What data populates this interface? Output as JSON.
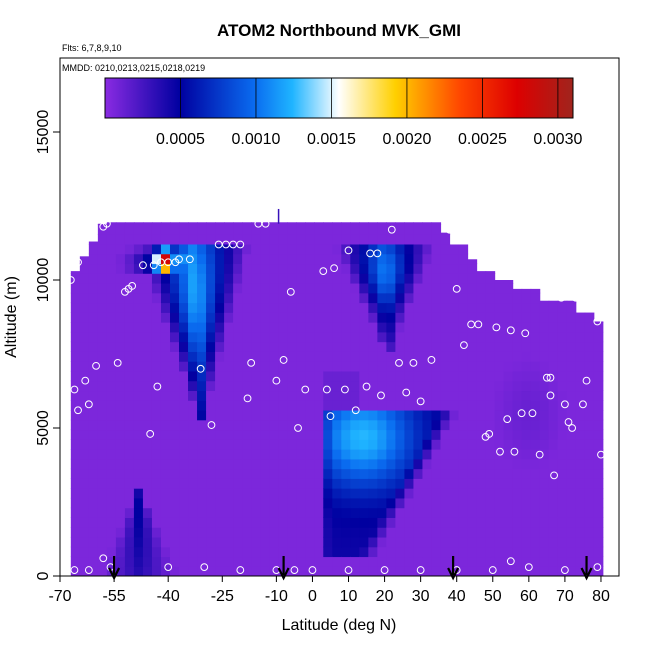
{
  "chart_data": {
    "type": "heatmap",
    "title": "ATOM2 Northbound MVK_GMI",
    "flights_note": "Flts: 6,7,8,9,10",
    "dates_note": "MMDD: 0210,0213,0215,0218,0219",
    "xlabel": "Latitude (deg N)",
    "ylabel": "Altitude (m)",
    "xlim": [
      -70,
      85
    ],
    "ylim": [
      0,
      17500
    ],
    "x_ticks": [
      -70,
      -55,
      -40,
      -25,
      -10,
      0,
      10,
      20,
      30,
      40,
      50,
      60,
      70,
      80
    ],
    "x_tick_labels": [
      "-70",
      "-55",
      "-40",
      "-25",
      "-10",
      "0",
      "10",
      "20",
      "30",
      "40",
      "50",
      "60",
      "70",
      "80"
    ],
    "y_ticks": [
      0,
      5000,
      10000,
      15000
    ],
    "y_tick_labels": [
      "0",
      "5000",
      "10000",
      "15000"
    ],
    "colorbar": {
      "range": [
        0,
        0.0031
      ],
      "ticks": [
        0.0005,
        0.001,
        0.0015,
        0.002,
        0.0025,
        0.003
      ],
      "tick_labels": [
        "0.0005",
        "0.0010",
        "0.0015",
        "0.0020",
        "0.0025",
        "0.0030"
      ],
      "colors": [
        "#8a2be2",
        "#0000a0",
        "#1e90ff",
        "#ffffff",
        "#ffd700",
        "#ff4500",
        "#cc0000",
        "#a52a2a"
      ]
    },
    "background_value": 5e-05,
    "regions": [
      {
        "name": "southern upper plume",
        "lat_range": [
          -50,
          -20
        ],
        "alt_top": 11200,
        "alt_bottom": 5500,
        "peak": 0.0012
      },
      {
        "name": "southern peak core",
        "lat": -41,
        "alt": 10600,
        "peak": 0.0028
      },
      {
        "name": "mid-latitude upper plume",
        "lat_range": [
          8,
          35
        ],
        "alt_top": 11000,
        "alt_bottom": 7600,
        "peak": 0.0011
      },
      {
        "name": "tropical lower plume",
        "lat_range": [
          2,
          40
        ],
        "alt_top": 5400,
        "alt_bottom": 800,
        "peak": 0.0012
      },
      {
        "name": "southern surface cone",
        "lat_range": [
          -60,
          -36
        ],
        "alt_top": 2900,
        "alt_bottom": 0,
        "peak": 0.0006
      }
    ],
    "flight_arrows_lat": [
      -55,
      -8,
      39,
      76
    ],
    "obs_points": [
      [
        -67,
        10000
      ],
      [
        -66,
        6300
      ],
      [
        -66,
        200
      ],
      [
        -65,
        5600
      ],
      [
        -65,
        10600
      ],
      [
        -64,
        11600
      ],
      [
        -63,
        6600
      ],
      [
        -62,
        5800
      ],
      [
        -62,
        200
      ],
      [
        -60,
        7100
      ],
      [
        -58,
        11800
      ],
      [
        -57,
        11900
      ],
      [
        -56,
        300
      ],
      [
        -54,
        7200
      ],
      [
        -52,
        9600
      ],
      [
        -51,
        9700
      ],
      [
        -50,
        9800
      ],
      [
        -47,
        10500
      ],
      [
        -45,
        4800
      ],
      [
        -44,
        10500
      ],
      [
        -43,
        6400
      ],
      [
        -42,
        10600
      ],
      [
        -40,
        10600
      ],
      [
        -38,
        10600
      ],
      [
        -37,
        10700
      ],
      [
        -34,
        10700
      ],
      [
        -31,
        7000
      ],
      [
        -28,
        5100
      ],
      [
        -26,
        11200
      ],
      [
        -24,
        11200
      ],
      [
        -22,
        11200
      ],
      [
        -20,
        11200
      ],
      [
        -18,
        6000
      ],
      [
        -17,
        7200
      ],
      [
        -15,
        11900
      ],
      [
        -13,
        11900
      ],
      [
        -10,
        6600
      ],
      [
        -8,
        7300
      ],
      [
        -6,
        9600
      ],
      [
        -4,
        5000
      ],
      [
        -2,
        6300
      ],
      [
        3,
        10300
      ],
      [
        4,
        6300
      ],
      [
        5,
        5400
      ],
      [
        6,
        10400
      ],
      [
        9,
        6300
      ],
      [
        10,
        11000
      ],
      [
        12,
        5600
      ],
      [
        15,
        6400
      ],
      [
        16,
        10900
      ],
      [
        18,
        10900
      ],
      [
        19,
        6100
      ],
      [
        22,
        11700
      ],
      [
        24,
        7200
      ],
      [
        26,
        6200
      ],
      [
        28,
        7200
      ],
      [
        30,
        5900
      ],
      [
        33,
        7300
      ],
      [
        38,
        11700
      ],
      [
        40,
        9700
      ],
      [
        42,
        7800
      ],
      [
        44,
        8500
      ],
      [
        46,
        8500
      ],
      [
        48,
        4700
      ],
      [
        49,
        4800
      ],
      [
        51,
        8400
      ],
      [
        52,
        4200
      ],
      [
        54,
        5300
      ],
      [
        55,
        8300
      ],
      [
        56,
        4200
      ],
      [
        58,
        5500
      ],
      [
        59,
        8200
      ],
      [
        61,
        5500
      ],
      [
        63,
        4100
      ],
      [
        65,
        6700
      ],
      [
        66,
        6700
      ],
      [
        66,
        6100
      ],
      [
        67,
        3400
      ],
      [
        69,
        9400
      ],
      [
        70,
        5800
      ],
      [
        71,
        5200
      ],
      [
        72,
        5000
      ],
      [
        73,
        9400
      ],
      [
        75,
        5800
      ],
      [
        76,
        6600
      ],
      [
        79,
        8600
      ],
      [
        80,
        4100
      ],
      [
        -40,
        300
      ],
      [
        -30,
        300
      ],
      [
        -20,
        200
      ],
      [
        -10,
        200
      ],
      [
        0,
        200
      ],
      [
        10,
        200
      ],
      [
        20,
        200
      ],
      [
        30,
        200
      ],
      [
        40,
        200
      ],
      [
        50,
        200
      ],
      [
        55,
        500
      ],
      [
        60,
        300
      ],
      [
        70,
        200
      ],
      [
        79,
        300
      ],
      [
        -5,
        200
      ],
      [
        -58,
        600
      ]
    ]
  }
}
